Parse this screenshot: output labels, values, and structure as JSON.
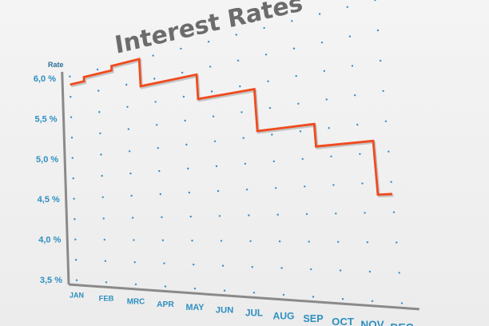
{
  "chart_data": {
    "type": "line",
    "step": true,
    "title": "Interest Rates",
    "ylabel": "Rate",
    "xlabel": "",
    "categories": [
      "JAN",
      "FEB",
      "MRC",
      "APR",
      "MAY",
      "JUN",
      "JUL",
      "AUG",
      "SEP",
      "OCT",
      "NOV",
      "DEC"
    ],
    "y_ticks": [
      "6,0 %",
      "5,5 %",
      "5,0 %",
      "4,5 %",
      "4,0 %",
      "3,5 %"
    ],
    "y_tick_values": [
      6.0,
      5.5,
      5.0,
      4.5,
      4.0,
      3.5
    ],
    "ylim": [
      3.5,
      6.0
    ],
    "series": [
      {
        "values": [
          5.9,
          5.95,
          6.0,
          5.7,
          5.7,
          5.45,
          5.45,
          5.05,
          5.05,
          4.85,
          4.85,
          4.4
        ]
      }
    ],
    "grid": "dotted",
    "colors": {
      "line": "#f04a1e",
      "dots": "#3a8fc4",
      "labels": "#2e8fc0",
      "title": "#6c6c6c",
      "axis": "#8a8a8a"
    }
  }
}
